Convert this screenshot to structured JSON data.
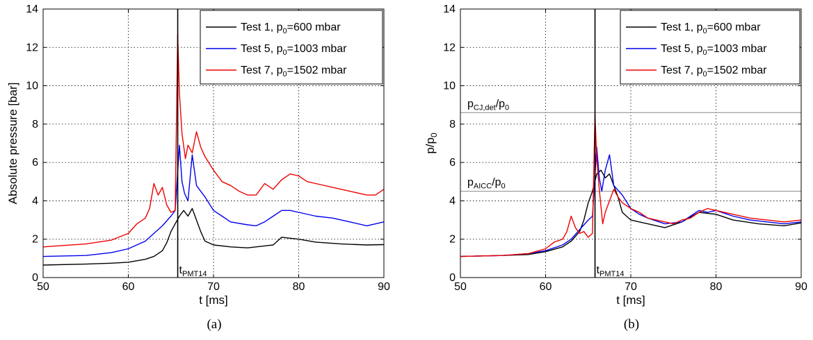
{
  "chart_data": [
    {
      "panel_label": "(a)",
      "type": "line",
      "xlabel": "t [ms]",
      "ylabel": "Absolute pressure [bar]",
      "xlim": [
        50,
        90
      ],
      "ylim": [
        0,
        14
      ],
      "xticks": [
        "50",
        "60",
        "70",
        "80",
        "90"
      ],
      "yticks": [
        "0",
        "2",
        "4",
        "6",
        "8",
        "10",
        "12",
        "14"
      ],
      "grid": true,
      "legend_position": "top-right",
      "vline": {
        "x": 65.8,
        "label_main": "t",
        "label_sub": "PMT14"
      },
      "series": [
        {
          "legend_prefix": "Test 1, p",
          "legend_sub": "0",
          "legend_suffix": "=600 mbar",
          "color": "#000000",
          "x": [
            50,
            55,
            58,
            60,
            62,
            63,
            64,
            64.5,
            65,
            65.5,
            66,
            66.5,
            67,
            67.5,
            68,
            68.5,
            69,
            70,
            72,
            74,
            75,
            76,
            77,
            78,
            80,
            82,
            85,
            88,
            90
          ],
          "y": [
            0.65,
            0.7,
            0.75,
            0.8,
            0.95,
            1.1,
            1.4,
            1.8,
            2.4,
            2.8,
            3.2,
            3.5,
            3.2,
            3.6,
            3.0,
            2.4,
            1.9,
            1.7,
            1.6,
            1.55,
            1.6,
            1.65,
            1.7,
            2.1,
            2.0,
            1.85,
            1.75,
            1.7,
            1.72
          ]
        },
        {
          "legend_prefix": "Test 5, p",
          "legend_sub": "0",
          "legend_suffix": "=1003 mbar",
          "color": "#0000ee",
          "x": [
            50,
            55,
            58,
            60,
            62,
            63,
            64,
            65,
            65.5,
            66,
            66.3,
            66.6,
            67,
            67.5,
            68,
            69,
            70,
            71,
            72,
            74,
            75,
            76,
            77,
            78,
            79,
            80,
            82,
            84,
            86,
            88,
            90
          ],
          "y": [
            1.1,
            1.15,
            1.3,
            1.5,
            1.9,
            2.3,
            2.7,
            3.2,
            3.5,
            6.9,
            5.0,
            4.4,
            4.0,
            6.4,
            4.8,
            4.2,
            3.5,
            3.2,
            2.9,
            2.75,
            2.7,
            2.9,
            3.2,
            3.5,
            3.5,
            3.4,
            3.2,
            3.1,
            2.9,
            2.7,
            2.9
          ]
        },
        {
          "legend_prefix": "Test 7, p",
          "legend_sub": "0",
          "legend_suffix": "=1502 mbar",
          "color": "#ee0000",
          "x": [
            50,
            55,
            58,
            60,
            61,
            62,
            62.5,
            63,
            63.5,
            64,
            64.5,
            65,
            65.5,
            65.8,
            66,
            66.3,
            66.7,
            67,
            67.5,
            68,
            68.5,
            69,
            70,
            71,
            72,
            73,
            74,
            75,
            76,
            77,
            78,
            79,
            80,
            81,
            82,
            84,
            86,
            88,
            89,
            90
          ],
          "y": [
            1.6,
            1.75,
            1.95,
            2.3,
            2.8,
            3.1,
            3.6,
            4.9,
            4.3,
            4.7,
            3.8,
            3.4,
            3.5,
            12.7,
            9.6,
            7.5,
            6.2,
            6.9,
            6.5,
            7.6,
            6.8,
            6.3,
            5.6,
            5.0,
            4.8,
            4.5,
            4.3,
            4.3,
            4.9,
            4.6,
            5.1,
            5.4,
            5.3,
            5.0,
            4.9,
            4.7,
            4.5,
            4.3,
            4.3,
            4.6
          ]
        }
      ]
    },
    {
      "panel_label": "(b)",
      "type": "line",
      "xlabel": "t [ms]",
      "ylabel_main": "p/p",
      "ylabel_sub": "0",
      "xlim": [
        50,
        90
      ],
      "ylim": [
        0,
        14
      ],
      "xticks": [
        "50",
        "60",
        "70",
        "80",
        "90"
      ],
      "yticks": [
        "0",
        "2",
        "4",
        "6",
        "8",
        "10",
        "12",
        "14"
      ],
      "grid": true,
      "legend_position": "top-right",
      "vline": {
        "x": 65.8,
        "label_main": "t",
        "label_sub": "PMT14"
      },
      "hlines": [
        {
          "y": 8.6,
          "label_main": "p",
          "label_sub": "CJ,det",
          "label_tail": "/p",
          "label_tail_sub": "0"
        },
        {
          "y": 4.5,
          "label_main": "p",
          "label_sub": "AICC",
          "label_tail": "/p",
          "label_tail_sub": "0"
        }
      ],
      "series": [
        {
          "legend_prefix": "Test 1, p",
          "legend_sub": "0",
          "legend_suffix": "=600 mbar",
          "color": "#000000",
          "x": [
            50,
            55,
            58,
            60,
            62,
            63,
            64,
            64.5,
            65,
            65.5,
            66,
            66.5,
            67,
            67.5,
            68,
            68.5,
            69,
            70,
            72,
            74,
            76,
            78,
            80,
            82,
            85,
            88,
            90
          ],
          "y": [
            1.1,
            1.15,
            1.2,
            1.35,
            1.6,
            1.9,
            2.4,
            3.0,
            3.9,
            4.5,
            5.4,
            5.6,
            5.2,
            5.4,
            4.8,
            4.2,
            3.4,
            3.0,
            2.8,
            2.6,
            2.9,
            3.4,
            3.3,
            3.0,
            2.8,
            2.7,
            2.85
          ]
        },
        {
          "legend_prefix": "Test 5, p",
          "legend_sub": "0",
          "legend_suffix": "=1003 mbar",
          "color": "#0000ee",
          "x": [
            50,
            55,
            58,
            60,
            62,
            63,
            64,
            65,
            65.5,
            66,
            66.3,
            66.6,
            67,
            67.5,
            68,
            69,
            70,
            71,
            72,
            74,
            76,
            77,
            78,
            79,
            80,
            82,
            84,
            86,
            88,
            90
          ],
          "y": [
            1.1,
            1.15,
            1.25,
            1.4,
            1.7,
            2.0,
            2.5,
            3.0,
            3.2,
            6.8,
            5.2,
            4.5,
            5.6,
            6.4,
            4.8,
            4.3,
            3.6,
            3.3,
            3.1,
            2.8,
            2.9,
            3.2,
            3.5,
            3.4,
            3.5,
            3.2,
            3.0,
            2.9,
            2.8,
            2.9
          ]
        },
        {
          "legend_prefix": "Test 7, p",
          "legend_sub": "0",
          "legend_suffix": "=1502 mbar",
          "color": "#ee0000",
          "x": [
            50,
            55,
            58,
            60,
            61,
            62,
            62.5,
            63,
            63.5,
            64,
            64.5,
            65,
            65.5,
            65.8,
            66,
            66.3,
            66.7,
            67,
            67.5,
            68,
            68.5,
            69,
            70,
            71,
            72,
            74,
            75,
            76,
            77,
            78,
            79,
            80,
            82,
            84,
            86,
            88,
            90
          ],
          "y": [
            1.1,
            1.15,
            1.25,
            1.5,
            1.85,
            2.0,
            2.4,
            3.2,
            2.6,
            2.3,
            2.4,
            2.1,
            2.3,
            8.5,
            6.2,
            4.6,
            2.8,
            3.4,
            4.0,
            4.6,
            4.2,
            3.9,
            3.6,
            3.4,
            3.1,
            2.9,
            2.8,
            3.0,
            3.1,
            3.4,
            3.6,
            3.5,
            3.3,
            3.1,
            3.0,
            2.9,
            3.0
          ]
        }
      ]
    }
  ]
}
